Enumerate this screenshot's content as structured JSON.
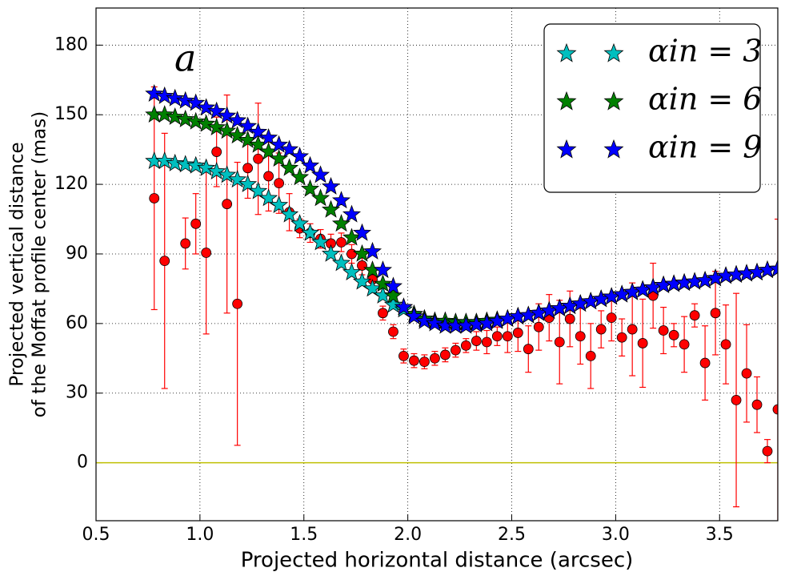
{
  "chart_data": {
    "type": "scatter",
    "xlabel": "Projected horizontal distance (arcsec)",
    "ylabel": [
      "Projected vertical distance",
      "of the Moffat profile center (mas)"
    ],
    "annotation": {
      "text": "a",
      "x": 0.93,
      "y": 173
    },
    "xlim": [
      0.5,
      3.78
    ],
    "ylim": [
      -25,
      196
    ],
    "xticks": [
      0.5,
      {
        "value": 1,
        "label": "1.0"
      },
      1.5,
      {
        "value": 2,
        "label": "2.0"
      },
      2.5,
      {
        "value": 3,
        "label": "3.0"
      },
      3.5
    ],
    "yticks": [
      0,
      30,
      60,
      90,
      120,
      150,
      180
    ],
    "grid": true,
    "legend": "upper right",
    "hlines": [
      {
        "y": 0,
        "color": "#bfbf00"
      }
    ],
    "x": [
      0.78,
      0.83,
      0.88,
      0.93,
      0.98,
      1.03,
      1.08,
      1.13,
      1.18,
      1.23,
      1.28,
      1.33,
      1.38,
      1.43,
      1.48,
      1.53,
      1.58,
      1.63,
      1.68,
      1.73,
      1.78,
      1.83,
      1.88,
      1.93,
      1.98,
      2.03,
      2.08,
      2.13,
      2.18,
      2.23,
      2.28,
      2.33,
      2.38,
      2.43,
      2.48,
      2.53,
      2.58,
      2.63,
      2.68,
      2.73,
      2.78,
      2.83,
      2.88,
      2.93,
      2.98,
      3.03,
      3.08,
      3.13,
      3.18,
      3.23,
      3.28,
      3.33,
      3.38,
      3.43,
      3.48,
      3.53,
      3.58,
      3.63,
      3.68,
      3.73,
      3.78
    ],
    "series": [
      {
        "color": "#ff0000",
        "marker": "circle",
        "x": [
          0.78,
          0.83,
          0.93,
          0.98,
          1.03,
          1.08,
          1.13,
          1.18,
          1.23,
          1.28,
          1.33,
          1.38,
          1.43,
          1.48,
          1.53,
          1.58,
          1.63,
          1.68,
          1.73,
          1.78,
          1.83,
          1.88,
          1.93,
          1.98,
          2.03,
          2.08,
          2.13,
          2.18,
          2.23,
          2.28,
          2.33,
          2.38,
          2.43,
          2.48,
          2.53,
          2.58,
          2.63,
          2.68,
          2.73,
          2.78,
          2.83,
          2.88,
          2.93,
          2.98,
          3.03,
          3.08,
          3.13,
          3.18,
          3.23,
          3.28,
          3.33,
          3.38,
          3.43,
          3.48,
          3.53,
          3.58,
          3.63,
          3.68,
          3.73,
          3.78
        ],
        "values": [
          114,
          87,
          94.5,
          103,
          90.5,
          134,
          111.5,
          68.5,
          127,
          131,
          123.5,
          120.5,
          108,
          101,
          99,
          96.5,
          94.5,
          95,
          90,
          85,
          79,
          64.5,
          56.5,
          46,
          44,
          43.5,
          45,
          46.5,
          48.5,
          50.5,
          52.5,
          52,
          54.5,
          54.5,
          56,
          49,
          58.5,
          62.5,
          52,
          62,
          54.5,
          46,
          57.5,
          62.5,
          54,
          57.5,
          51.5,
          72,
          57,
          55,
          51,
          63.5,
          43,
          64.5,
          51,
          27,
          38.5,
          25,
          5,
          23
        ],
        "errors": [
          48,
          55,
          11,
          13,
          35,
          15,
          47,
          61,
          13,
          24,
          15,
          13,
          8,
          4,
          4,
          4,
          4,
          4,
          4,
          4,
          4,
          3,
          3,
          3,
          3,
          3,
          3,
          3,
          3,
          3,
          4,
          5,
          4,
          7,
          8,
          10,
          10,
          10,
          18,
          12,
          12,
          14,
          8,
          10,
          8,
          20,
          19,
          14,
          10,
          5,
          12,
          5,
          16,
          18,
          17,
          46,
          21,
          12,
          5,
          82
        ]
      },
      {
        "name": "αin = 3",
        "color": "#00bfbf",
        "marker": "star",
        "values": [
          130,
          130,
          129,
          128.5,
          128,
          127,
          125.5,
          124,
          122,
          120,
          117,
          114,
          111,
          107,
          103,
          99,
          95,
          90,
          86,
          82,
          78,
          75,
          72,
          68,
          66,
          64,
          62,
          61,
          61,
          60.5,
          60.5,
          60.5,
          61,
          61.5,
          62,
          63,
          63.5,
          64.5,
          65.5,
          66.5,
          67.5,
          68.5,
          69.5,
          70.5,
          71.5,
          72.5,
          73.5,
          74.5,
          75.5,
          76.5,
          77,
          77.5,
          78,
          78.5,
          79.5,
          80.5,
          81,
          81.5,
          82,
          83,
          83.5
        ]
      },
      {
        "name": "αin = 6",
        "color": "#008000",
        "marker": "star",
        "values": [
          150,
          150,
          149,
          148,
          147,
          146,
          144.5,
          143,
          141,
          139,
          137,
          134,
          131,
          127,
          123,
          118,
          114,
          109,
          103,
          97,
          90,
          83,
          77,
          72,
          67,
          64,
          62,
          61,
          61,
          60.5,
          60.5,
          60.5,
          61,
          61.5,
          62,
          63,
          63.5,
          64.5,
          65.5,
          66.5,
          67.5,
          68.5,
          69.5,
          70.5,
          71.5,
          72.5,
          73.5,
          74.5,
          75.5,
          76.5,
          77,
          77.5,
          78,
          78.5,
          79.5,
          80.5,
          81,
          81.5,
          82,
          83,
          83.5
        ]
      },
      {
        "name": "αin = 9",
        "color": "#0000ff",
        "marker": "star",
        "values": [
          159,
          158,
          157,
          156,
          155,
          153,
          151.5,
          149.5,
          147.5,
          145,
          142.5,
          140,
          137,
          135,
          132,
          128,
          124,
          119,
          113,
          107,
          99,
          91,
          83,
          76,
          67,
          63,
          61,
          60,
          59,
          59,
          59,
          59.5,
          60,
          61,
          62,
          63,
          63.5,
          64.5,
          65.5,
          66.5,
          67.5,
          68.5,
          69.5,
          70.5,
          71.5,
          72.5,
          73.5,
          74.5,
          75.5,
          76.5,
          77,
          77.5,
          78,
          78.5,
          79.5,
          80.5,
          81,
          81.5,
          82,
          83,
          83.5
        ]
      }
    ]
  }
}
